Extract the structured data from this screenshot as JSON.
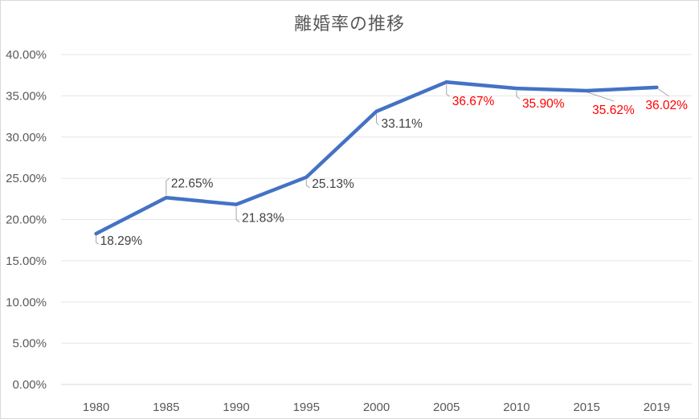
{
  "chart_data": {
    "type": "line",
    "title": "離婚率の推移",
    "categories": [
      "1980",
      "1985",
      "1990",
      "1995",
      "2000",
      "2005",
      "2010",
      "2015",
      "2019"
    ],
    "values": [
      18.29,
      22.65,
      21.83,
      25.13,
      33.11,
      36.67,
      35.9,
      35.62,
      36.02
    ],
    "data_labels": [
      "18.29%",
      "22.65%",
      "21.83%",
      "25.13%",
      "33.11%",
      "36.67%",
      "35.90%",
      "35.62%",
      "36.02%"
    ],
    "data_label_colors": [
      "#404040",
      "#404040",
      "#404040",
      "#404040",
      "#404040",
      "#FF0000",
      "#FF0000",
      "#FF0000",
      "#FF0000"
    ],
    "xlabel": "",
    "ylabel": "",
    "ylim": [
      0,
      40
    ],
    "ytick_step": 5,
    "ytick_labels": [
      "0.00%",
      "5.00%",
      "10.00%",
      "15.00%",
      "20.00%",
      "25.00%",
      "30.00%",
      "35.00%",
      "40.00%"
    ],
    "grid": true,
    "legend": false,
    "colors": {
      "line": "#4472C4",
      "gridline": "#E6E6E6",
      "axis_line": "#D9D9D9",
      "leader": "#A6A6A6",
      "axis_text": "#595959",
      "title_text": "#595959",
      "background": "#FFFFFF"
    }
  }
}
